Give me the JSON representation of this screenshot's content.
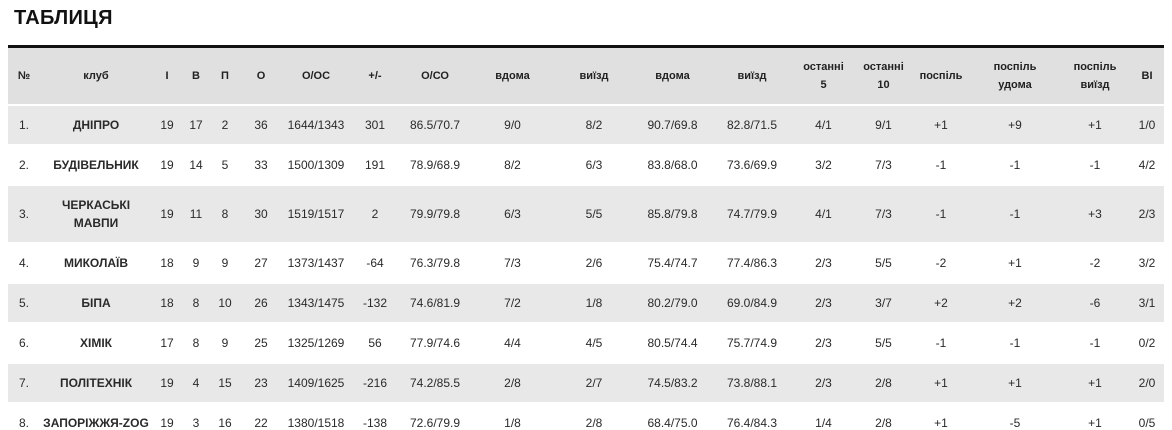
{
  "page": {
    "title": "ТАБЛИЦЯ"
  },
  "colors": {
    "header_bg": "#e0e0e0",
    "row_alt_bg": "#e8e8e8",
    "top_rule": "#111111",
    "text": "#2a2a2a"
  },
  "table": {
    "headers": [
      "№",
      "клуб",
      "І",
      "В",
      "П",
      "О",
      "О/ОС",
      "+/-",
      "О/СО",
      "вдома",
      "виїзд",
      "вдома",
      "виїзд",
      "останні\n5",
      "останні\n10",
      "поспіль",
      "поспіль\nудома",
      "поспіль\nвиїзд",
      "ВІ"
    ],
    "rows": [
      [
        "1.",
        "ДНІПРО",
        "19",
        "17",
        "2",
        "36",
        "1644/1343",
        "301",
        "86.5/70.7",
        "9/0",
        "8/2",
        "90.7/69.8",
        "82.8/71.5",
        "4/1",
        "9/1",
        "+1",
        "+9",
        "+1",
        "1/0"
      ],
      [
        "2.",
        "БУДІВЕЛЬНИК",
        "19",
        "14",
        "5",
        "33",
        "1500/1309",
        "191",
        "78.9/68.9",
        "8/2",
        "6/3",
        "83.8/68.0",
        "73.6/69.9",
        "3/2",
        "7/3",
        "-1",
        "-1",
        "-1",
        "4/2"
      ],
      [
        "3.",
        "ЧЕРКАСЬКІ МАВПИ",
        "19",
        "11",
        "8",
        "30",
        "1519/1517",
        "2",
        "79.9/79.8",
        "6/3",
        "5/5",
        "85.8/79.8",
        "74.7/79.9",
        "4/1",
        "7/3",
        "-1",
        "-1",
        "+3",
        "2/3"
      ],
      [
        "4.",
        "МИКОЛАЇВ",
        "18",
        "9",
        "9",
        "27",
        "1373/1437",
        "-64",
        "76.3/79.8",
        "7/3",
        "2/6",
        "75.4/74.7",
        "77.4/86.3",
        "2/3",
        "5/5",
        "-2",
        "+1",
        "-2",
        "3/2"
      ],
      [
        "5.",
        "БІПА",
        "18",
        "8",
        "10",
        "26",
        "1343/1475",
        "-132",
        "74.6/81.9",
        "7/2",
        "1/8",
        "80.2/79.0",
        "69.0/84.9",
        "2/3",
        "3/7",
        "+2",
        "+2",
        "-6",
        "3/1"
      ],
      [
        "6.",
        "ХІМІК",
        "17",
        "8",
        "9",
        "25",
        "1325/1269",
        "56",
        "77.9/74.6",
        "4/4",
        "4/5",
        "80.5/74.4",
        "75.7/74.9",
        "2/3",
        "5/5",
        "-1",
        "-1",
        "-1",
        "0/2"
      ],
      [
        "7.",
        "ПОЛІТЕХНІК",
        "19",
        "4",
        "15",
        "23",
        "1409/1625",
        "-216",
        "74.2/85.5",
        "2/8",
        "2/7",
        "74.5/83.2",
        "73.8/88.1",
        "2/3",
        "2/8",
        "+1",
        "+1",
        "+1",
        "2/0"
      ],
      [
        "8.",
        "ЗАПОРІЖЖЯ-ZOG",
        "19",
        "3",
        "16",
        "22",
        "1380/1518",
        "-138",
        "72.6/79.9",
        "1/8",
        "2/8",
        "68.4/75.0",
        "76.4/84.3",
        "1/4",
        "2/8",
        "+1",
        "-5",
        "+1",
        "0/5"
      ]
    ]
  }
}
